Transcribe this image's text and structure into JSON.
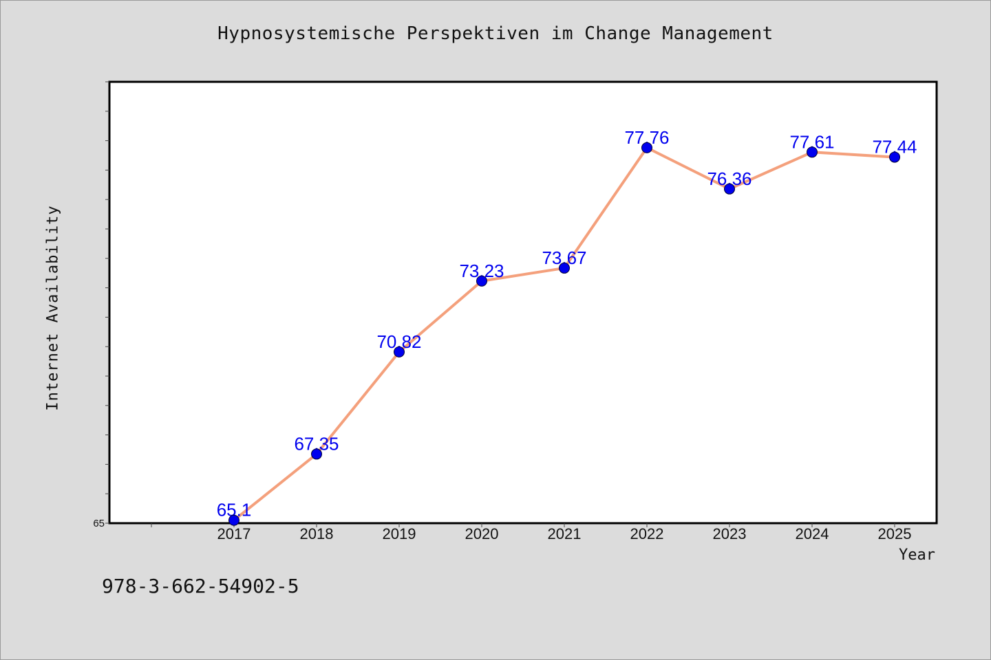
{
  "chart_data": {
    "type": "line",
    "title": "Hypnosystemische Perspektiven im Change Management",
    "xlabel": "Year",
    "ylabel": "Internet Availability",
    "categories": [
      "2017",
      "2018",
      "2019",
      "2020",
      "2021",
      "2022",
      "2023",
      "2024",
      "2025"
    ],
    "series": [
      {
        "values": [
          65.1,
          67.35,
          70.82,
          73.23,
          73.67,
          77.76,
          76.36,
          77.61,
          77.44
        ],
        "labels": [
          "65.1",
          "67.35",
          "70.82",
          "73.23",
          "73.67",
          "77.76",
          "76.36",
          "77.61",
          "77.44"
        ],
        "line_color": "#f4a07c",
        "marker_color": "#0000ee",
        "label_color": "#0000ee"
      }
    ],
    "ylim": [
      65,
      80
    ],
    "y_tick_labels": [
      "65"
    ],
    "grid": false,
    "legend": "none"
  },
  "footer": {
    "isbn": "978-3-662-54902-5"
  }
}
